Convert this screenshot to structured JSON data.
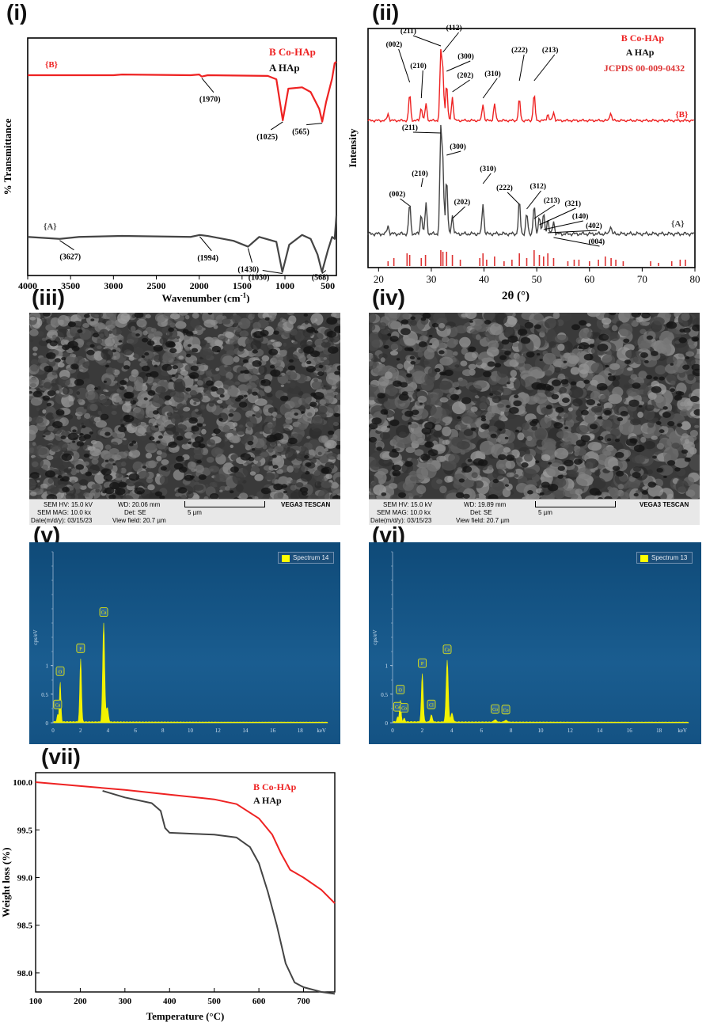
{
  "panels": {
    "p1": "(i)",
    "p2": "(ii)",
    "p3": "(iii)",
    "p4": "(iv)",
    "p5": "(v)",
    "p6": "(vi)",
    "p7": "(vii)"
  },
  "colors": {
    "coHAp": "#ee2222",
    "HAp": "#444444",
    "jcpds": "#dd3333",
    "eds_peak": "#f2f200"
  },
  "chart_data": [
    {
      "id": "ftir",
      "type": "line",
      "xlabel": "Wavenumber (cm",
      "xlabel_sup": "-1",
      "xlabel_end": ")",
      "ylabel": "% Transmittance",
      "xlim": [
        4000,
        400
      ],
      "xticks": [
        "4000",
        "3500",
        "3000",
        "2500",
        "2000",
        "1500",
        "1000",
        "500"
      ],
      "legend": [
        {
          "letter": "B",
          "name": "Co-HAp"
        },
        {
          "letter": "A",
          "name": "HAp"
        }
      ],
      "series": [
        {
          "name": "Co-HAp",
          "tag": "{B}",
          "x": [
            4000,
            3000,
            2900,
            2100,
            2000,
            1970,
            1900,
            1200,
            1100,
            1025,
            960,
            800,
            700,
            600,
            565,
            520,
            450,
            420,
            400
          ],
          "y": [
            0.8,
            0.8,
            0.81,
            0.8,
            0.81,
            0.78,
            0.8,
            0.79,
            0.74,
            0.13,
            0.6,
            0.62,
            0.55,
            0.3,
            0.11,
            0.4,
            0.75,
            0.98,
            1.0
          ]
        },
        {
          "name": "HAp",
          "tag": "{A}",
          "x": [
            4000,
            3627,
            3400,
            2900,
            2100,
            1994,
            1900,
            1600,
            1430,
            1300,
            1100,
            1030,
            950,
            800,
            700,
            620,
            568,
            500,
            450,
            420,
            400
          ],
          "y": [
            0.38,
            0.36,
            0.38,
            0.39,
            0.38,
            0.4,
            0.39,
            0.34,
            0.28,
            0.38,
            0.33,
            0.02,
            0.3,
            0.4,
            0.36,
            0.2,
            0.02,
            0.24,
            0.38,
            0.36,
            0.6
          ]
        }
      ],
      "annotations": [
        {
          "label": "(1970)",
          "x": 1970,
          "series": "Co-HAp"
        },
        {
          "label": "(1025)",
          "x": 1025,
          "series": "Co-HAp"
        },
        {
          "label": "(565)",
          "x": 565,
          "series": "Co-HAp"
        },
        {
          "label": "(3627)",
          "x": 3627,
          "series": "HAp"
        },
        {
          "label": "(1994)",
          "x": 1994,
          "series": "HAp"
        },
        {
          "label": "(1430)",
          "x": 1430,
          "series": "HAp"
        },
        {
          "label": "(1030)",
          "x": 1030,
          "series": "HAp"
        },
        {
          "label": "(568)",
          "x": 568,
          "series": "HAp"
        }
      ]
    },
    {
      "id": "xrd",
      "type": "bar",
      "xlabel": "2θ (°)",
      "ylabel": "Intensity",
      "xlim": [
        18,
        80
      ],
      "xticks": [
        "20",
        "30",
        "40",
        "50",
        "60",
        "70",
        "80"
      ],
      "legend": [
        {
          "letter": "B",
          "name": "Co-HAp"
        },
        {
          "letter": "A",
          "name": "HAp"
        }
      ],
      "legend_extra": "JCPDS  00-009-0432",
      "series": [
        {
          "name": "Co-HAp",
          "tag": "{B}",
          "peaks": [
            [
              21.8,
              0.1
            ],
            [
              25.9,
              0.4
            ],
            [
              28.1,
              0.2
            ],
            [
              29.0,
              0.25
            ],
            [
              31.8,
              1.0
            ],
            [
              32.2,
              0.7
            ],
            [
              32.9,
              0.55
            ],
            [
              34.0,
              0.35
            ],
            [
              39.8,
              0.25
            ],
            [
              42.0,
              0.25
            ],
            [
              46.7,
              0.32
            ],
            [
              49.5,
              0.4
            ],
            [
              52.1,
              0.1
            ],
            [
              53.2,
              0.12
            ],
            [
              64.0,
              0.12
            ]
          ],
          "hkl": [
            "(002)",
            "(210)",
            "(211)",
            "(112)",
            "(300)",
            "(202)",
            "(310)",
            "(222)",
            "(213)"
          ]
        },
        {
          "name": "HAp",
          "tag": "{A}",
          "peaks": [
            [
              21.8,
              0.08
            ],
            [
              25.9,
              0.3
            ],
            [
              28.1,
              0.2
            ],
            [
              29.0,
              0.3
            ],
            [
              31.8,
              1.0
            ],
            [
              32.2,
              0.65
            ],
            [
              32.9,
              0.55
            ],
            [
              34.0,
              0.18
            ],
            [
              39.8,
              0.3
            ],
            [
              46.7,
              0.32
            ],
            [
              48.1,
              0.2
            ],
            [
              49.5,
              0.28
            ],
            [
              50.5,
              0.18
            ],
            [
              51.3,
              0.2
            ],
            [
              52.1,
              0.15
            ],
            [
              53.2,
              0.12
            ],
            [
              64.0,
              0.08
            ]
          ],
          "hkl": [
            "(002)",
            "(210)",
            "(211)",
            "(300)",
            "(202)",
            "(310)",
            "(222)",
            "(312)",
            "(213)",
            "(321)",
            "(140)",
            "(402)",
            "(004)"
          ]
        }
      ],
      "reference_x": [
        21.8,
        22.9,
        25.4,
        25.9,
        28.1,
        28.9,
        31.8,
        32.2,
        32.9,
        34.0,
        35.5,
        39.2,
        39.8,
        40.5,
        42.0,
        43.8,
        45.3,
        46.7,
        48.1,
        49.5,
        50.5,
        51.3,
        52.1,
        53.2,
        55.9,
        57.1,
        58.0,
        60.0,
        61.7,
        63.0,
        64.1,
        65.0,
        66.4,
        71.6,
        73.1,
        75.6,
        77.2,
        78.2
      ]
    },
    {
      "id": "eds14",
      "type": "bar",
      "legend": "Spectrum 14",
      "ylabel": "cps/eV",
      "xlabel": "keV",
      "yticks": [
        "0",
        "0.5",
        "1"
      ],
      "xticks": [
        "0",
        "2",
        "4",
        "6",
        "8",
        "10",
        "12",
        "14",
        "16",
        "18"
      ],
      "xlim": [
        0,
        20
      ],
      "ylim": [
        0,
        1.55
      ],
      "peaks": [
        {
          "el": "Ca",
          "x": 0.34,
          "y": 0.12
        },
        {
          "el": "O",
          "x": 0.52,
          "y": 0.7
        },
        {
          "el": "P",
          "x": 2.01,
          "y": 1.1
        },
        {
          "el": "Ca",
          "x": 3.69,
          "y": 1.73
        },
        {
          "el": "",
          "x": 3.95,
          "y": 0.25
        }
      ]
    },
    {
      "id": "eds13",
      "type": "bar",
      "legend": "Spectrum 13",
      "ylabel": "cps/eV",
      "xlabel": "keV",
      "yticks": [
        "0",
        "0.5",
        "1"
      ],
      "xticks": [
        "0",
        "2",
        "4",
        "6",
        "8",
        "10",
        "12",
        "14",
        "16",
        "18"
      ],
      "xlim": [
        0,
        20
      ],
      "ylim": [
        0,
        1.55
      ],
      "peaks": [
        {
          "el": "Ca",
          "x": 0.34,
          "y": 0.08
        },
        {
          "el": "O",
          "x": 0.52,
          "y": 0.38
        },
        {
          "el": "Co",
          "x": 0.78,
          "y": 0.06
        },
        {
          "el": "P",
          "x": 2.01,
          "y": 0.84
        },
        {
          "el": "Cl",
          "x": 2.62,
          "y": 0.12
        },
        {
          "el": "Ca",
          "x": 3.69,
          "y": 1.08
        },
        {
          "el": "",
          "x": 4.01,
          "y": 0.15
        },
        {
          "el": "Co",
          "x": 6.93,
          "y": 0.04
        },
        {
          "el": "Co",
          "x": 7.65,
          "y": 0.03
        }
      ]
    },
    {
      "id": "tga",
      "type": "line",
      "xlabel": "Temperature (°C)",
      "ylabel": "Weight loss (%)",
      "xlim": [
        100,
        770
      ],
      "ylim": [
        97.8,
        100.1
      ],
      "xticks": [
        "100",
        "200",
        "300",
        "400",
        "500",
        "600",
        "700"
      ],
      "yticks": [
        "98.0",
        "98.5",
        "99.0",
        "99.5",
        "100.0"
      ],
      "legend": [
        {
          "letter": "B",
          "name": "Co-HAp"
        },
        {
          "letter": "A",
          "name": "HAp"
        }
      ],
      "series": [
        {
          "name": "Co-HAp",
          "x": [
            100,
            200,
            300,
            400,
            500,
            550,
            600,
            630,
            650,
            670,
            700,
            740,
            770
          ],
          "y": [
            100.0,
            99.96,
            99.92,
            99.87,
            99.82,
            99.77,
            99.62,
            99.45,
            99.25,
            99.08,
            99.0,
            98.87,
            98.73
          ]
        },
        {
          "name": "HAp",
          "x": [
            250,
            300,
            360,
            380,
            390,
            400,
            450,
            500,
            550,
            580,
            600,
            620,
            640,
            660,
            680,
            700,
            740,
            770
          ],
          "y": [
            99.91,
            99.84,
            99.78,
            99.7,
            99.52,
            99.47,
            99.46,
            99.45,
            99.42,
            99.32,
            99.15,
            98.85,
            98.5,
            98.1,
            97.9,
            97.85,
            97.8,
            97.78
          ]
        }
      ]
    }
  ],
  "sem": [
    {
      "hv": "SEM HV: 15.0 kV",
      "wd": "WD: 20.06 mm",
      "brand": "VEGA3 TESCAN",
      "mag": "SEM MAG: 10.0 kx",
      "det": "Det: SE",
      "scale": "5 µm",
      "date": "Date(m/d/y): 03/15/23",
      "field": "View field: 20.7 µm"
    },
    {
      "hv": "SEM HV: 15.0 kV",
      "wd": "WD: 19.89 mm",
      "brand": "VEGA3 TESCAN",
      "mag": "SEM MAG: 10.0 kx",
      "det": "Det: SE",
      "scale": "5 µm",
      "date": "Date(m/d/y): 03/15/23",
      "field": "View field: 20.7 µm"
    }
  ]
}
